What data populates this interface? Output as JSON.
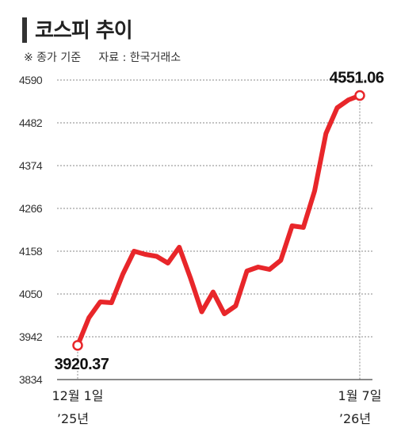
{
  "header": {
    "title": "코스피 추이",
    "subtitle": "※ 종가 기준     자료 : 한국거래소"
  },
  "chart_data": {
    "type": "line",
    "title": "코스피 추이",
    "xlabel": "",
    "ylabel": "",
    "ylim": [
      3834,
      4590
    ],
    "yticks": [
      4590,
      4482,
      4374,
      4266,
      4158,
      4050,
      3942,
      3834
    ],
    "grid": true,
    "x_labels": [
      {
        "index": 0,
        "line1": "12월 1일",
        "line2": "’25년"
      },
      {
        "index": 25,
        "line1": "1월 7일",
        "line2": "’26년"
      }
    ],
    "series": [
      {
        "color": "#e8262a",
        "values": [
          3920.37,
          3990,
          4030,
          4028,
          4100,
          4158,
          4150,
          4145,
          4128,
          4168,
          4090,
          4005,
          4055,
          4000,
          4020,
          4108,
          4118,
          4112,
          4135,
          4222,
          4218,
          4310,
          4455,
          4520,
          4540,
          4551.06
        ]
      }
    ],
    "annotations": [
      {
        "index": 0,
        "text": "3920.37"
      },
      {
        "index": 25,
        "text": "4551.06"
      }
    ]
  }
}
